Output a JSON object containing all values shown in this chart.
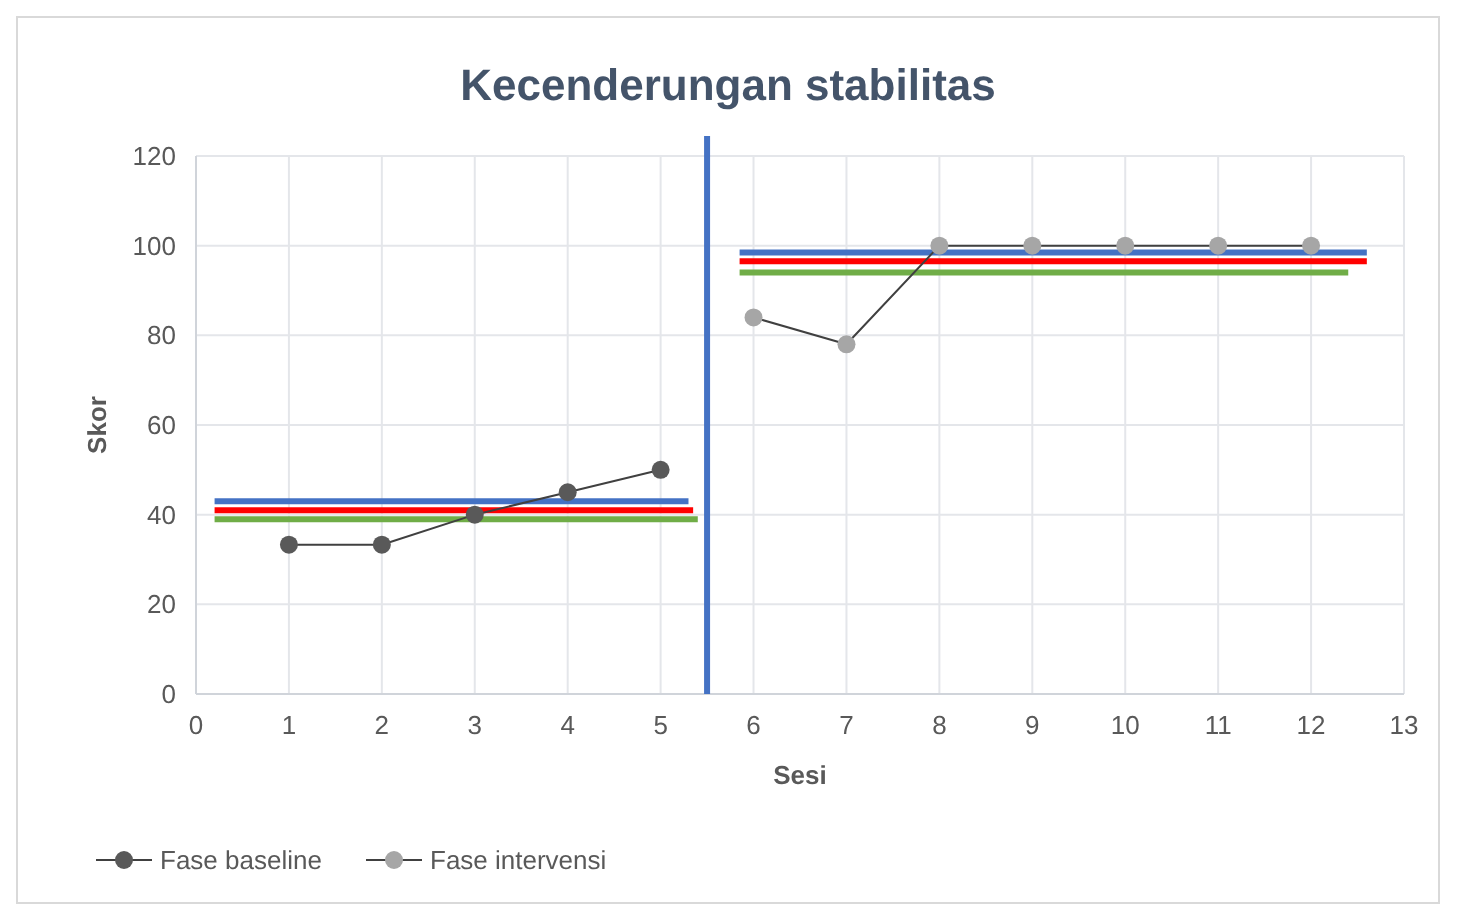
{
  "chart_data": {
    "type": "line",
    "title": "Kecenderungan stabilitas",
    "xlabel": "Sesi",
    "ylabel": "Skor",
    "xlim": [
      0,
      13
    ],
    "xticks": [
      0,
      1,
      2,
      3,
      4,
      5,
      6,
      7,
      8,
      9,
      10,
      11,
      12,
      13
    ],
    "ylim": [
      0,
      120
    ],
    "yticks": [
      0,
      20,
      40,
      60,
      80,
      100,
      120
    ],
    "grid": true,
    "legend": "bottom",
    "marker": "circle",
    "series": [
      {
        "name": "Fase baseline",
        "color": "#595959",
        "x": [
          1,
          2,
          3,
          4,
          5
        ],
        "values": [
          33.3,
          33.3,
          40,
          45,
          50
        ]
      },
      {
        "name": "Fase intervensi",
        "color": "#a6a6a6",
        "x": [
          6,
          7,
          8,
          9,
          10,
          11,
          12
        ],
        "values": [
          84,
          78,
          100,
          100,
          100,
          100,
          100
        ]
      },
      {
        "type": "line",
        "marker": "none",
        "color": "#4472c4",
        "x": [
          0.2,
          5.3
        ],
        "values": [
          43,
          43
        ]
      },
      {
        "type": "line",
        "marker": "none",
        "color": "#ff0000",
        "x": [
          0.2,
          5.35
        ],
        "values": [
          41,
          41
        ]
      },
      {
        "type": "line",
        "marker": "none",
        "color": "#70ad47",
        "x": [
          0.2,
          5.4
        ],
        "values": [
          39,
          39
        ]
      },
      {
        "type": "line",
        "marker": "none",
        "color": "#4472c4",
        "x": [
          5.85,
          12.6
        ],
        "values": [
          98.5,
          98.5
        ]
      },
      {
        "type": "line",
        "marker": "none",
        "color": "#ff0000",
        "x": [
          5.85,
          12.6
        ],
        "values": [
          96.5,
          96.5
        ]
      },
      {
        "type": "line",
        "marker": "none",
        "color": "#70ad47",
        "x": [
          5.85,
          12.4
        ],
        "values": [
          94,
          94
        ]
      }
    ],
    "ref_lines": [
      {
        "axis": "x",
        "value": 5.5,
        "color": "#4472c4"
      }
    ]
  }
}
